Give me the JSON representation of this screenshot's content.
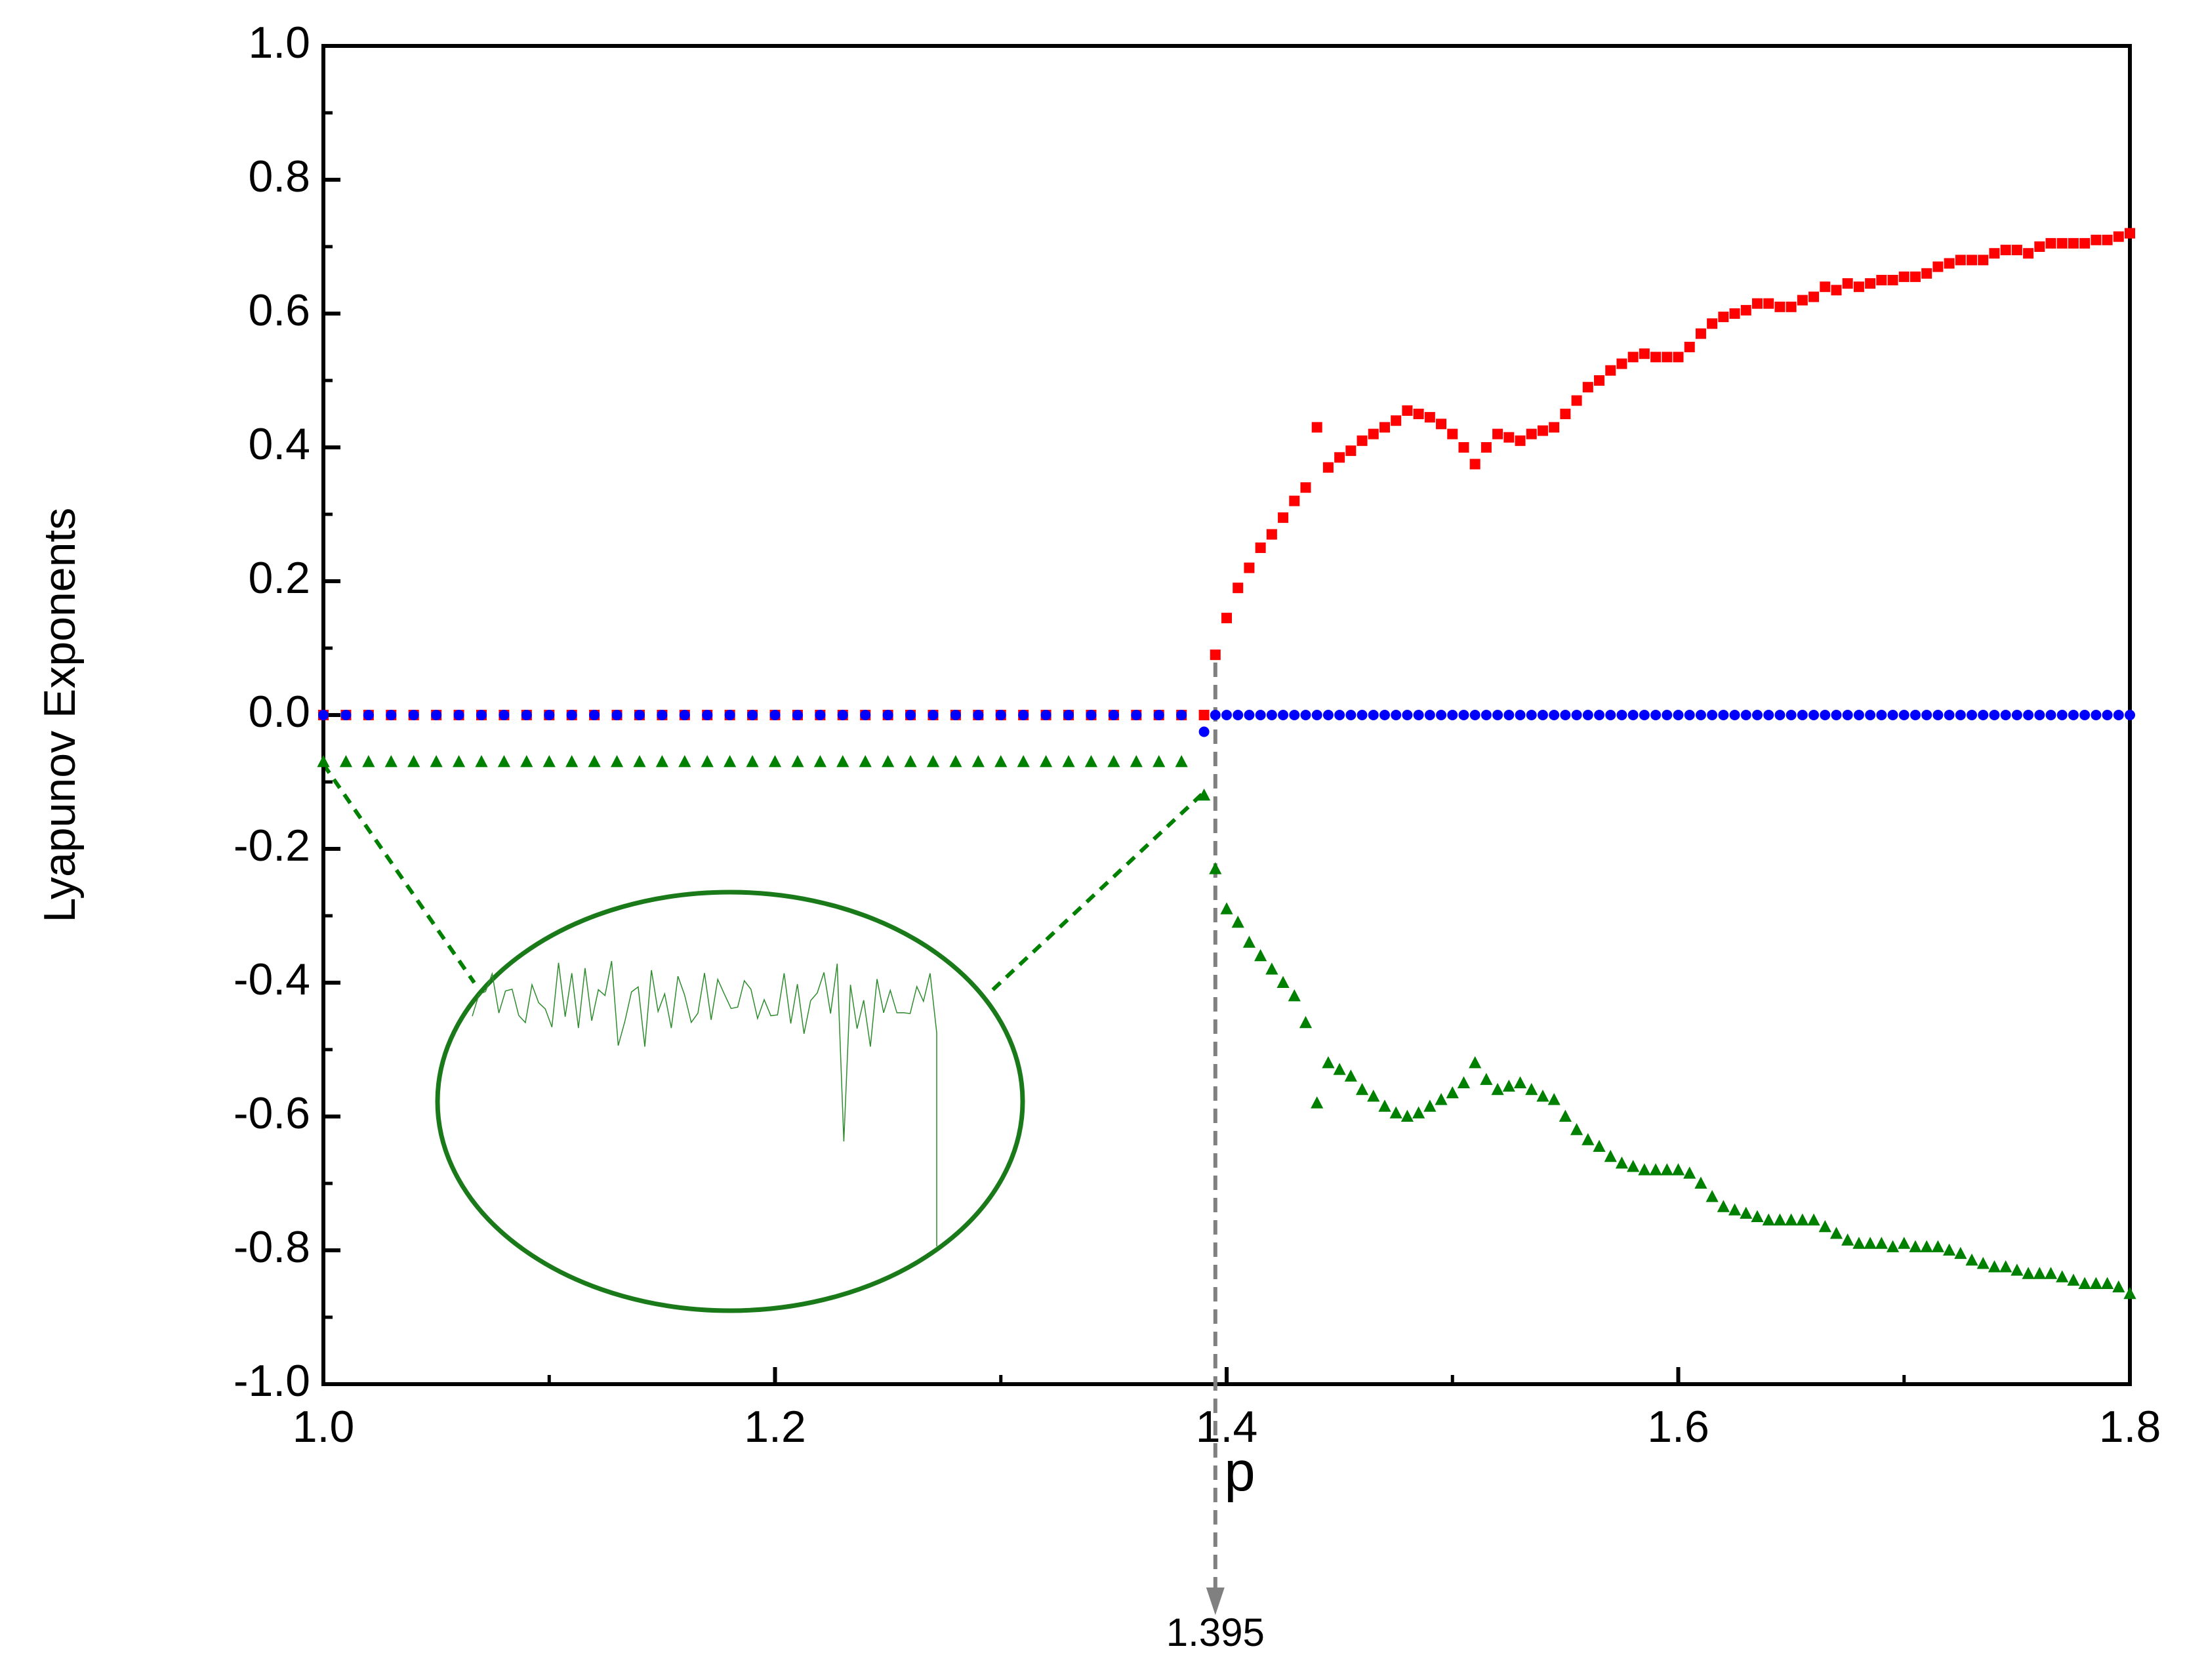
{
  "chart_data": {
    "type": "scatter",
    "y_label": "Lyapunov Exponents",
    "x_label": "p",
    "critical_p": 1.395,
    "xlim": [
      1.0,
      1.8
    ],
    "ylim": [
      -1.0,
      1.0
    ],
    "xticks": [
      {
        "value": 1.0,
        "label": "1.0"
      },
      {
        "value": 1.2,
        "label": "1.2"
      },
      {
        "value": 1.4,
        "label": "1.4"
      },
      {
        "value": 1.6,
        "label": "1.6"
      },
      {
        "value": 1.8,
        "label": "1.8"
      }
    ],
    "yticks": [
      {
        "value": -1.0,
        "label": "-1.0"
      },
      -0.8,
      -0.6,
      -0.4,
      -0.2,
      {
        "value": 0.0,
        "label": "0.0"
      },
      0.2,
      0.4,
      0.6,
      0.8,
      {
        "value": 1.0,
        "label": "1.0"
      }
    ],
    "x": [
      1.0,
      1.01,
      1.02,
      1.03,
      1.04,
      1.05,
      1.06,
      1.07,
      1.08,
      1.09,
      1.1,
      1.11,
      1.12,
      1.13,
      1.14,
      1.15,
      1.16,
      1.17,
      1.18,
      1.19,
      1.2,
      1.21,
      1.22,
      1.23,
      1.24,
      1.25,
      1.26,
      1.27,
      1.28,
      1.29,
      1.3,
      1.31,
      1.32,
      1.33,
      1.34,
      1.35,
      1.36,
      1.37,
      1.38,
      1.39,
      1.395,
      1.4,
      1.405,
      1.41,
      1.415,
      1.42,
      1.425,
      1.43,
      1.435,
      1.44,
      1.445,
      1.45,
      1.455,
      1.46,
      1.465,
      1.47,
      1.475,
      1.48,
      1.485,
      1.49,
      1.495,
      1.5,
      1.505,
      1.51,
      1.515,
      1.52,
      1.525,
      1.53,
      1.535,
      1.54,
      1.545,
      1.55,
      1.555,
      1.56,
      1.565,
      1.57,
      1.575,
      1.58,
      1.585,
      1.59,
      1.595,
      1.6,
      1.605,
      1.61,
      1.615,
      1.62,
      1.625,
      1.63,
      1.635,
      1.64,
      1.645,
      1.65,
      1.655,
      1.66,
      1.665,
      1.67,
      1.675,
      1.68,
      1.685,
      1.69,
      1.695,
      1.7,
      1.705,
      1.71,
      1.715,
      1.72,
      1.725,
      1.73,
      1.735,
      1.74,
      1.745,
      1.75,
      1.755,
      1.76,
      1.765,
      1.77,
      1.775,
      1.78,
      1.785,
      1.79,
      1.795,
      1.8
    ],
    "series": [
      {
        "color": "#ff0000",
        "marker": "square",
        "values": [
          0,
          0,
          0,
          0,
          0,
          0,
          0,
          0,
          0,
          0,
          0,
          0,
          0,
          0,
          0,
          0,
          0,
          0,
          0,
          0,
          0,
          0,
          0,
          0,
          0,
          0,
          0,
          0,
          0,
          0,
          0,
          0,
          0,
          0,
          0,
          0,
          0,
          0,
          0,
          0,
          0.09,
          0.145,
          0.19,
          0.22,
          0.25,
          0.27,
          0.295,
          0.32,
          0.34,
          0.43,
          0.37,
          0.385,
          0.395,
          0.41,
          0.42,
          0.43,
          0.44,
          0.455,
          0.45,
          0.445,
          0.435,
          0.42,
          0.4,
          0.375,
          0.4,
          0.42,
          0.415,
          0.41,
          0.42,
          0.425,
          0.43,
          0.45,
          0.47,
          0.49,
          0.5,
          0.515,
          0.525,
          0.535,
          0.54,
          0.535,
          0.535,
          0.535,
          0.55,
          0.57,
          0.585,
          0.595,
          0.6,
          0.605,
          0.615,
          0.615,
          0.61,
          0.61,
          0.62,
          0.625,
          0.64,
          0.635,
          0.645,
          0.64,
          0.645,
          0.65,
          0.65,
          0.655,
          0.655,
          0.66,
          0.67,
          0.675,
          0.68,
          0.68,
          0.68,
          0.69,
          0.695,
          0.695,
          0.69,
          0.7,
          0.705,
          0.705,
          0.705,
          0.705,
          0.71,
          0.71,
          0.715,
          0.72
        ]
      },
      {
        "color": "#0000ff",
        "marker": "circle",
        "values": [
          0,
          0,
          0,
          0,
          0,
          0,
          0,
          0,
          0,
          0,
          0,
          0,
          0,
          0,
          0,
          0,
          0,
          0,
          0,
          0,
          0,
          0,
          0,
          0,
          0,
          0,
          0,
          0,
          0,
          0,
          0,
          0,
          0,
          0,
          0,
          0,
          0,
          0,
          0,
          -0.025,
          0,
          0,
          0,
          0,
          0,
          0,
          0,
          0,
          0,
          0,
          0,
          0,
          0,
          0,
          0,
          0,
          0,
          0,
          0,
          0,
          0,
          0,
          0,
          0,
          0,
          0,
          0,
          0,
          0,
          0,
          0,
          0,
          0,
          0,
          0,
          0,
          0,
          0,
          0,
          0,
          0,
          0,
          0,
          0,
          0,
          0,
          0,
          0,
          0,
          0,
          0,
          0,
          0,
          0,
          0,
          0,
          0,
          0,
          0,
          0,
          0,
          0,
          0,
          0,
          0,
          0,
          0,
          0,
          0,
          0,
          0,
          0,
          0,
          0,
          0,
          0,
          0,
          0,
          0,
          0,
          0,
          0
        ]
      },
      {
        "color": "#008000",
        "marker": "triangle",
        "values": [
          -0.07,
          -0.07,
          -0.07,
          -0.07,
          -0.07,
          -0.07,
          -0.07,
          -0.07,
          -0.07,
          -0.07,
          -0.07,
          -0.07,
          -0.07,
          -0.07,
          -0.07,
          -0.07,
          -0.07,
          -0.07,
          -0.07,
          -0.07,
          -0.07,
          -0.07,
          -0.07,
          -0.07,
          -0.07,
          -0.07,
          -0.07,
          -0.07,
          -0.07,
          -0.07,
          -0.07,
          -0.07,
          -0.07,
          -0.07,
          -0.07,
          -0.07,
          -0.07,
          -0.07,
          -0.07,
          -0.12,
          -0.23,
          -0.29,
          -0.31,
          -0.34,
          -0.36,
          -0.38,
          -0.4,
          -0.42,
          -0.46,
          -0.58,
          -0.52,
          -0.53,
          -0.54,
          -0.56,
          -0.57,
          -0.585,
          -0.595,
          -0.6,
          -0.595,
          -0.585,
          -0.575,
          -0.565,
          -0.55,
          -0.52,
          -0.545,
          -0.56,
          -0.555,
          -0.55,
          -0.56,
          -0.57,
          -0.575,
          -0.6,
          -0.62,
          -0.635,
          -0.645,
          -0.66,
          -0.67,
          -0.675,
          -0.68,
          -0.68,
          -0.68,
          -0.68,
          -0.685,
          -0.7,
          -0.72,
          -0.735,
          -0.74,
          -0.745,
          -0.75,
          -0.755,
          -0.755,
          -0.755,
          -0.755,
          -0.755,
          -0.765,
          -0.775,
          -0.785,
          -0.79,
          -0.79,
          -0.79,
          -0.795,
          -0.79,
          -0.795,
          -0.795,
          -0.795,
          -0.8,
          -0.805,
          -0.815,
          -0.82,
          -0.825,
          -0.825,
          -0.83,
          -0.835,
          -0.835,
          -0.835,
          -0.84,
          -0.845,
          -0.85,
          -0.85,
          -0.85,
          -0.855,
          -0.865
        ]
      }
    ]
  }
}
